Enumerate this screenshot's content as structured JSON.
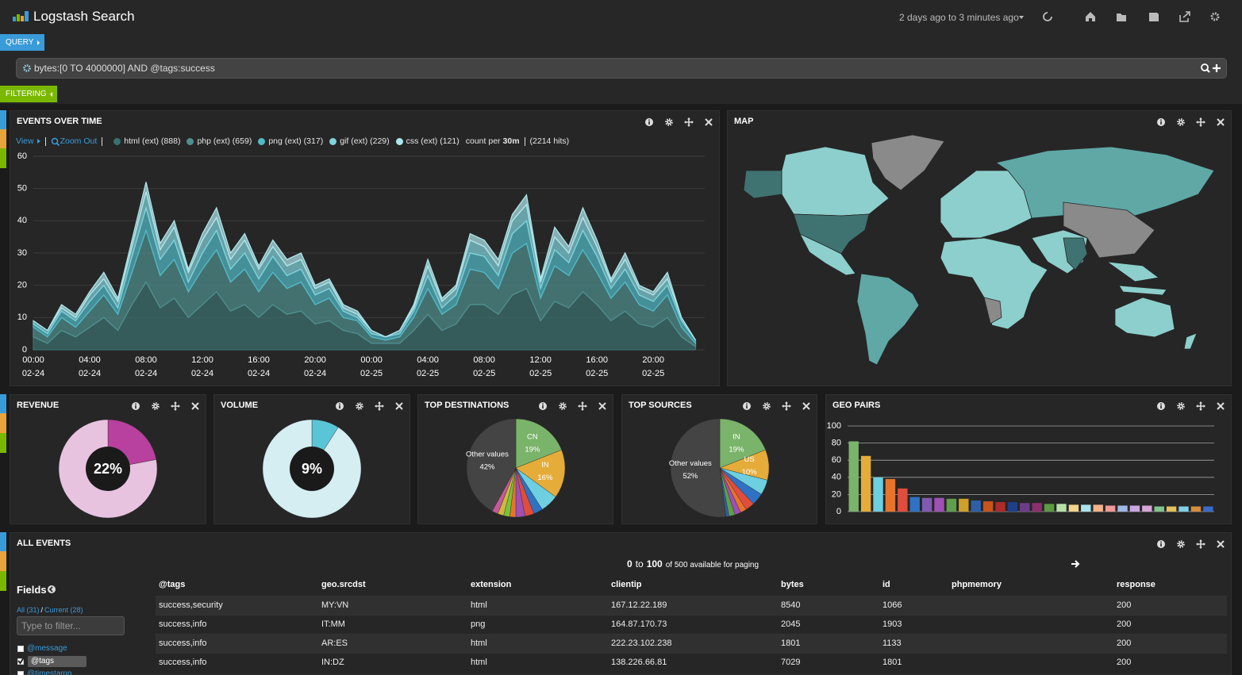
{
  "header": {
    "title": "Logstash Search",
    "time_range": "2 days ago to 3 minutes ago"
  },
  "query": {
    "button": "QUERY",
    "text": "bytes:[0 TO 4000000] AND @tags:success"
  },
  "filtering": {
    "button": "FILTERING"
  },
  "events_over_time": {
    "type": "area",
    "title": "EVENTS OVER TIME",
    "view": "View",
    "zoom_out": "Zoom Out",
    "count_per": "count per",
    "interval": "30m",
    "hits": "(2214 hits)",
    "stacked": true,
    "grid": true,
    "categories": [
      "00:00\n02-24",
      null,
      null,
      null,
      "04:00\n02-24",
      null,
      null,
      null,
      "08:00\n02-24",
      null,
      null,
      null,
      "12:00\n02-24",
      null,
      null,
      null,
      "16:00\n02-24",
      null,
      null,
      null,
      "20:00\n02-24",
      null,
      null,
      null,
      "00:00\n02-25",
      null,
      null,
      null,
      "04:00\n02-25",
      null,
      null,
      null,
      "08:00\n02-25",
      null,
      null,
      null,
      "12:00\n02-25",
      null,
      null,
      null,
      "16:00\n02-25",
      null,
      null,
      null,
      "20:00\n02-25",
      null,
      null,
      null
    ],
    "series": [
      {
        "name": "html (ext) (888)",
        "color": "#3b706f",
        "values": [
          4,
          2,
          6,
          4,
          7,
          10,
          6,
          14,
          21,
          13,
          16,
          10,
          14,
          18,
          12,
          14,
          10,
          14,
          11,
          12,
          8,
          9,
          6,
          5,
          2,
          2,
          2,
          6,
          11,
          6,
          8,
          14,
          14,
          11,
          17,
          19,
          9,
          15,
          13,
          18,
          14,
          9,
          12,
          8,
          7,
          10,
          4,
          1
        ]
      },
      {
        "name": "php (ext) (659)",
        "color": "#4f8f8e",
        "values": [
          3,
          2,
          4,
          3,
          5,
          7,
          5,
          10,
          16,
          10,
          12,
          8,
          11,
          13,
          9,
          11,
          8,
          10,
          8,
          9,
          6,
          7,
          4,
          4,
          2,
          1,
          2,
          4,
          8,
          5,
          6,
          11,
          10,
          8,
          13,
          14,
          7,
          11,
          10,
          13,
          10,
          7,
          9,
          6,
          5,
          7,
          3,
          1
        ]
      },
      {
        "name": "png (ext) (317)",
        "color": "#52b9c6",
        "values": [
          1,
          1,
          2,
          2,
          3,
          3,
          2,
          5,
          7,
          5,
          6,
          3,
          5,
          6,
          4,
          5,
          4,
          5,
          4,
          4,
          3,
          3,
          2,
          1,
          1,
          1,
          1,
          2,
          4,
          2,
          3,
          5,
          5,
          4,
          6,
          7,
          3,
          5,
          4,
          6,
          5,
          3,
          4,
          3,
          3,
          3,
          2,
          1
        ]
      },
      {
        "name": "gif (ext) (229)",
        "color": "#80d3db",
        "values": [
          1,
          1,
          1,
          1,
          2,
          2,
          2,
          3,
          5,
          3,
          4,
          3,
          4,
          4,
          3,
          4,
          3,
          3,
          3,
          3,
          2,
          2,
          1,
          1,
          1,
          0,
          1,
          1,
          3,
          2,
          2,
          4,
          3,
          3,
          4,
          5,
          2,
          4,
          3,
          4,
          3,
          2,
          3,
          2,
          2,
          2,
          1,
          0
        ]
      },
      {
        "name": "css (ext) (121)",
        "color": "#aee5ea",
        "values": [
          0,
          0,
          1,
          1,
          1,
          2,
          1,
          2,
          3,
          2,
          2,
          1,
          2,
          3,
          2,
          2,
          1,
          2,
          2,
          2,
          1,
          1,
          1,
          1,
          0,
          0,
          0,
          1,
          2,
          1,
          1,
          2,
          2,
          2,
          2,
          3,
          1,
          3,
          2,
          3,
          2,
          1,
          2,
          1,
          1,
          2,
          0,
          0
        ]
      }
    ],
    "ylim": [
      0,
      60
    ],
    "yticks": [
      0,
      10,
      20,
      30,
      40,
      50,
      60
    ]
  },
  "map": {
    "title": "MAP"
  },
  "revenue": {
    "type": "pie",
    "title": "REVENUE",
    "donut": true,
    "values": [
      22,
      78
    ],
    "value_labels": [
      "22%",
      null
    ],
    "colors": [
      "#b8409f",
      "#e8c3e0"
    ]
  },
  "volume": {
    "type": "pie",
    "title": "VOLUME",
    "donut": true,
    "values": [
      9,
      91
    ],
    "value_labels": [
      "9%",
      null
    ],
    "colors": [
      "#5bc5d8",
      "#d4eef2"
    ]
  },
  "top_destinations": {
    "type": "pie",
    "title": "TOP DESTINATIONS",
    "donut": false,
    "categories": [
      "CN",
      "IN",
      null,
      null,
      null,
      null,
      null,
      null,
      null,
      null,
      "Other values"
    ],
    "values": [
      19,
      16,
      6,
      3,
      3,
      3,
      2,
      2,
      2,
      2,
      42
    ],
    "value_labels": [
      "19%",
      "16%",
      null,
      null,
      null,
      null,
      null,
      null,
      null,
      null,
      "42%"
    ],
    "colors": [
      "#7ab36a",
      "#e5ac3a",
      "#6dcfdf",
      "#2f72c3",
      "#e14d3c",
      "#a04fb5",
      "#e8742a",
      "#77c33d",
      "#cfb83a",
      "#c45a9a",
      "#444444"
    ]
  },
  "top_sources": {
    "type": "pie",
    "title": "TOP SOURCES",
    "donut": false,
    "categories": [
      "IN",
      "US",
      null,
      null,
      null,
      null,
      null,
      null,
      null,
      "Other values"
    ],
    "values": [
      19,
      10,
      5,
      4,
      3,
      2,
      2,
      2,
      1,
      52
    ],
    "value_labels": [
      "19%",
      "10%",
      null,
      null,
      null,
      null,
      null,
      null,
      null,
      "52%"
    ],
    "colors": [
      "#7ab36a",
      "#e5ac3a",
      "#6dcfdf",
      "#2f72c3",
      "#e14d3c",
      "#e8742a",
      "#a04fb5",
      "#5f9e4a",
      "#2e5fa8",
      "#444444"
    ]
  },
  "geo_pairs": {
    "type": "bar",
    "title": "GEO PAIRS",
    "grid": true,
    "categories": [
      null,
      null,
      null,
      null,
      null,
      null,
      null,
      null,
      null,
      null,
      null,
      null,
      null,
      null,
      null,
      null,
      null,
      null,
      null,
      null,
      null,
      null,
      null,
      null,
      null,
      null,
      null,
      null,
      null,
      null
    ],
    "values": [
      82,
      65,
      40,
      38,
      27,
      17,
      16,
      16,
      15,
      15,
      13,
      12,
      11,
      11,
      10,
      10,
      9,
      9,
      8,
      8,
      8,
      7,
      7,
      7,
      7,
      6,
      6,
      6,
      6,
      6
    ],
    "colors": [
      "#7ab36a",
      "#e5ac3a",
      "#6dcfdf",
      "#e8742a",
      "#e14d3c",
      "#2f72c3",
      "#7f5ab0",
      "#a04fb5",
      "#5f9e4a",
      "#cfa02a",
      "#2e5fa8",
      "#c8541a",
      "#b02a2a",
      "#1f3e8a",
      "#6d3d8a",
      "#8c2f6e",
      "#5b9a40",
      "#b6e0a8",
      "#f3d38a",
      "#a9e4ef",
      "#f2b28a",
      "#f09a98",
      "#9fb8e6",
      "#c9a6e0",
      "#d6a6d6",
      "#7fc58f",
      "#e5c15a",
      "#7fd0e6",
      "#d88c3c",
      "#3a6bc9"
    ],
    "ylim": [
      0,
      100
    ],
    "yticks": [
      0,
      20,
      40,
      60,
      80,
      100
    ]
  },
  "all_events": {
    "title": "ALL EVENTS",
    "paging": {
      "from": 0,
      "to_word": "to",
      "to": 100,
      "rest": "of 500 available for paging"
    },
    "fields": {
      "title": "Fields",
      "all": "All (31)",
      "divider": "/",
      "current": "Current (28)",
      "filter_placeholder": "Type to filter...",
      "items": [
        {
          "name": "@message",
          "checked": false
        },
        {
          "name": "@tags",
          "checked": true
        },
        {
          "name": "@timestamp",
          "checked": false
        }
      ]
    },
    "table": {
      "columns": [
        "@tags",
        "geo.srcdst",
        "extension",
        "clientip",
        "bytes",
        "id",
        "phpmemory",
        "response"
      ],
      "rows": [
        [
          "success,security",
          "MY:VN",
          "html",
          "167.12.22.189",
          8540,
          1066,
          null,
          200
        ],
        [
          "success,info",
          "IT:MM",
          "png",
          "164.87.170.73",
          2045,
          1903,
          null,
          200
        ],
        [
          "success,info",
          "AR:ES",
          "html",
          "222.23.102.238",
          1801,
          1133,
          null,
          200
        ],
        [
          "success,info",
          "IN:DZ",
          "html",
          "138.226.66.81",
          7029,
          1801,
          null,
          200
        ]
      ]
    }
  }
}
